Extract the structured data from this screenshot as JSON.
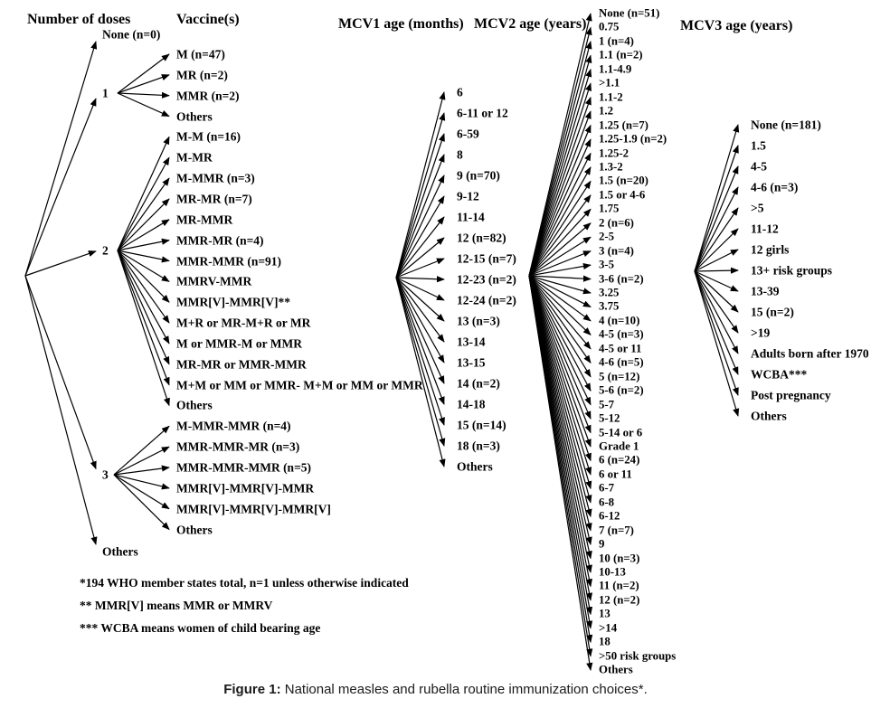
{
  "figure": {
    "columns": {
      "doses": {
        "header": "Number of doses",
        "items": [
          "None (n=0)",
          "1",
          "2",
          "3",
          "Others"
        ]
      },
      "vaccines": {
        "header": "Vaccine(s)",
        "groups": [
          {
            "dose": "1",
            "items": [
              "M (n=47)",
              "MR (n=2)",
              "MMR (n=2)",
              "Others"
            ]
          },
          {
            "dose": "2",
            "items": [
              "M-M (n=16)",
              "M-MR",
              "M-MMR (n=3)",
              "MR-MR (n=7)",
              "MR-MMR",
              "MMR-MR (n=4)",
              "MMR-MMR (n=91)",
              "MMRV-MMR",
              "MMR[V]-MMR[V]**",
              "M+R or MR-M+R or MR",
              "M or MMR-M or MMR",
              "MR-MR or MMR-MMR",
              "M+M or MM or MMR- M+M or MM or MMR",
              "Others"
            ]
          },
          {
            "dose": "3",
            "items": [
              "M-MMR-MMR (n=4)",
              "MMR-MMR-MR (n=3)",
              "MMR-MMR-MMR (n=5)",
              "MMR[V]-MMR[V]-MMR",
              "MMR[V]-MMR[V]-MMR[V]",
              "Others"
            ]
          }
        ]
      },
      "mcv1": {
        "header": "MCV1 age (months)",
        "items": [
          "6",
          "6-11 or 12",
          "6-59",
          "8",
          "9 (n=70)",
          "9-12",
          "11-14",
          "12 (n=82)",
          "12-15 (n=7)",
          "12-23 (n=2)",
          "12-24 (n=2)",
          "13 (n=3)",
          "13-14",
          "13-15",
          "14 (n=2)",
          "14-18",
          "15 (n=14)",
          "18 (n=3)",
          "Others"
        ]
      },
      "mcv2": {
        "header": "MCV2 age (years)",
        "items": [
          "None (n=51)",
          "0.75",
          "1 (n=4)",
          "1.1 (n=2)",
          "1.1-4.9",
          ">1.1",
          "1.1-2",
          "1.2",
          "1.25 (n=7)",
          "1.25-1.9 (n=2)",
          "1.25-2",
          "1.3-2",
          "1.5 (n=20)",
          "1.5 or 4-6",
          "1.75",
          "2 (n=6)",
          "2-5",
          "3 (n=4)",
          "3-5",
          "3-6 (n=2)",
          "3.25",
          "3.75",
          "4 (n=10)",
          "4-5 (n=3)",
          "4-5 or 11",
          "4-6 (n=5)",
          "5 (n=12)",
          "5-6 (n=2)",
          "5-7",
          "5-12",
          "5-14 or 6",
          "Grade 1",
          "6 (n=24)",
          "6 or 11",
          "6-7",
          "6-8",
          "6-12",
          "7 (n=7)",
          "9",
          "10 (n=3)",
          "10-13",
          "11 (n=2)",
          "12 (n=2)",
          "13",
          ">14",
          "18",
          ">50 risk groups",
          "Others"
        ]
      },
      "mcv3": {
        "header": "MCV3 age (years)",
        "items": [
          "None (n=181)",
          "1.5",
          "4-5",
          "4-6 (n=3)",
          ">5",
          "11-12",
          "12 girls",
          "13+ risk groups",
          "13-39",
          "15 (n=2)",
          ">19",
          "Adults born after 1970",
          "WCBA***",
          "Post pregnancy",
          "Others"
        ]
      }
    },
    "footnotes": [
      "*194 WHO member states total, n=1 unless otherwise indicated",
      "** MMR[V] means MMR or MMRV",
      "*** WCBA means women of child bearing age"
    ],
    "caption": {
      "prefix": "Figure 1:",
      "text": " National measles and rubella routine immunization choices*."
    }
  }
}
